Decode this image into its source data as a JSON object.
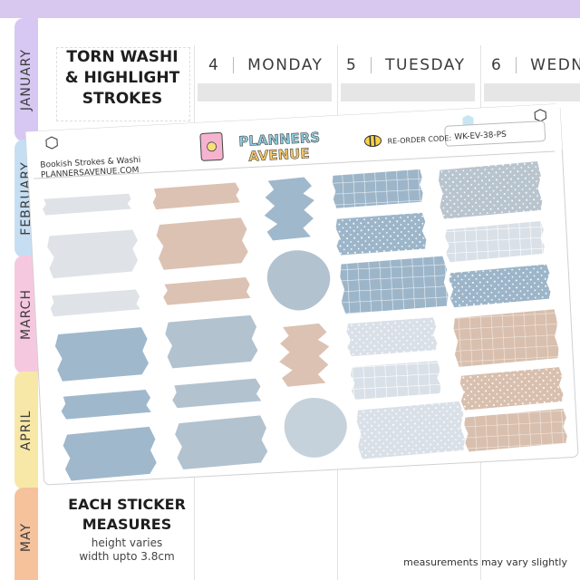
{
  "months": [
    "JANUARY",
    "FEBRUARY",
    "MARCH",
    "APRIL",
    "MAY"
  ],
  "month_colors": [
    "#d6c8f2",
    "#c6def2",
    "#f6c8e0",
    "#f8e8a8",
    "#f6c29c"
  ],
  "days": [
    {
      "number": "4",
      "name": "MONDAY"
    },
    {
      "number": "5",
      "name": "TUESDAY"
    },
    {
      "number": "6",
      "name": "WEDNE"
    }
  ],
  "title": {
    "line1": "TORN WASHI",
    "line2": "& HIGHLIGHT",
    "line3": "STROKES"
  },
  "sheet": {
    "subtitle": "Bookish Strokes & Washi",
    "website": "PLANNERSAVENUE.COM",
    "logo_line1": "PLANNERS",
    "logo_line2": "AVENUE",
    "reorder_label": "RE-ORDER CODE:",
    "reorder_code": "WK-EV-38-PS",
    "brand_icon": "planner-icon",
    "bee_icon": "bee-icon"
  },
  "measure": {
    "title1": "EACH STICKER",
    "title2": "MEASURES",
    "sub1": "height varies",
    "sub2": "width upto 3.8cm"
  },
  "footnote": "measurements may vary slightly",
  "colors": {
    "light_gray": "#dfe3e8",
    "beige": "#dcc2b3",
    "blue": "#9fb8cc",
    "gray_blue": "#b2c2cf",
    "light_blue_gray": "#c6d2db"
  }
}
